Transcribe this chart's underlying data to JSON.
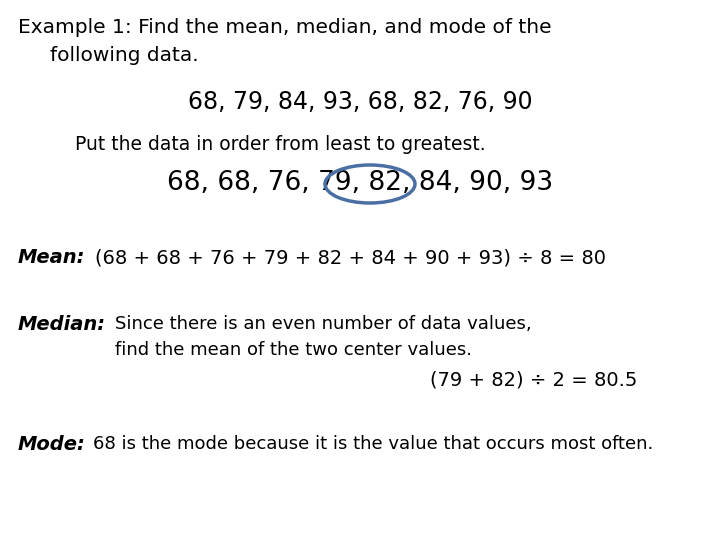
{
  "bg_color": "#ffffff",
  "title_line1": "Example 1: Find the mean, median, and mode of the",
  "title_line2": "following data.",
  "data_line": "68, 79, 84, 93, 68, 82, 76, 90",
  "order_label": "Put the data in order from least to greatest.",
  "ordered_full": "68, 68, 76, 79, 82, 84, 90, 93",
  "mean_label": "Mean:",
  "mean_text": "(68 + 68 + 76 + 79 + 82 + 84 + 90 + 93) ÷ 8 = 80",
  "median_label": "Median:",
  "median_line1": "Since there is an even number of data values,",
  "median_line2": "find the mean of the two center values.",
  "median_calc": "(79 + 82) ÷ 2 = 80.5",
  "mode_label": "Mode:",
  "mode_text": "68 is the mode because it is the value that occurs most often.",
  "font_color": "#000000",
  "circle_color": "#4a6fa5",
  "title_fontsize": 14.5,
  "data_fontsize": 17,
  "order_fontsize": 13.5,
  "ordered_fontsize": 19,
  "mean_fontsize": 14,
  "median_label_fontsize": 14,
  "median_text_fontsize": 13,
  "median_calc_fontsize": 14,
  "mode_fontsize": 14,
  "mode_text_fontsize": 13
}
